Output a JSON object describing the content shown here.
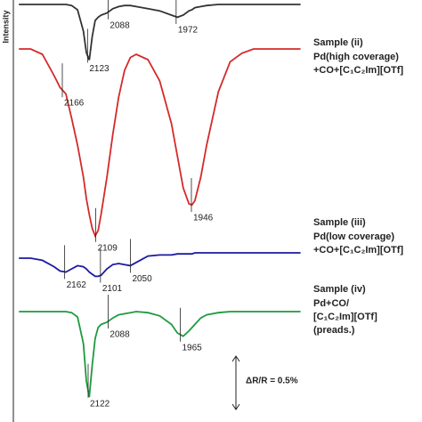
{
  "chart_data": {
    "type": "spectra",
    "y_label": "Intensity",
    "x": [
      2240,
      2220,
      2200,
      2180,
      2170,
      2160,
      2150,
      2140,
      2130,
      2125,
      2120,
      2115,
      2110,
      2105,
      2100,
      2090,
      2080,
      2070,
      2060,
      2050,
      2040,
      2020,
      2000,
      1980,
      1970,
      1960,
      1950,
      1945,
      1940,
      1930,
      1920,
      1900,
      1880,
      1860,
      1840,
      1800,
      1760
    ],
    "series": [
      {
        "color": "#333333",
        "peaks": [
          2123,
          2088,
          1972
        ],
        "values": [
          0,
          0,
          0,
          0,
          0,
          0,
          -0.01,
          -0.05,
          -0.25,
          -0.45,
          -0.52,
          -0.3,
          -0.15,
          -0.12,
          -0.1,
          -0.08,
          -0.04,
          -0.02,
          -0.01,
          -0.01,
          -0.02,
          -0.04,
          -0.06,
          -0.1,
          -0.12,
          -0.1,
          -0.06,
          -0.05,
          -0.03,
          -0.02,
          -0.01,
          0,
          0,
          0,
          0,
          0,
          0
        ]
      },
      {
        "name": "Sample (ii)",
        "description": [
          "Pd(high coverage)",
          "+CO+[C₁C₂Im][OTf]"
        ],
        "color": "#d42a2a",
        "peaks": [
          2166,
          2109,
          1946
        ],
        "values": [
          0,
          0,
          -0.05,
          -0.25,
          -0.36,
          -0.42,
          -0.65,
          -0.9,
          -1.2,
          -1.4,
          -1.55,
          -1.68,
          -1.75,
          -1.7,
          -1.55,
          -1.2,
          -0.8,
          -0.45,
          -0.2,
          -0.08,
          -0.05,
          -0.1,
          -0.3,
          -0.7,
          -1.0,
          -1.3,
          -1.45,
          -1.46,
          -1.42,
          -1.2,
          -0.9,
          -0.4,
          -0.12,
          -0.04,
          0,
          0,
          0
        ]
      },
      {
        "name": "Sample (iii)",
        "description": [
          "Pd(low coverage)",
          "+CO+[C₁C₂Im][OTf]"
        ],
        "color": "#1a1aa0",
        "peaks": [
          2162,
          2101,
          2050
        ],
        "values": [
          0,
          0,
          -0.02,
          -0.08,
          -0.12,
          -0.13,
          -0.1,
          -0.07,
          -0.08,
          -0.1,
          -0.13,
          -0.15,
          -0.17,
          -0.17,
          -0.16,
          -0.1,
          -0.06,
          -0.05,
          -0.06,
          -0.07,
          -0.04,
          0.02,
          0.03,
          0.03,
          0.04,
          0.04,
          0.04,
          0.04,
          0.05,
          0.05,
          0.05,
          0.05,
          0.05,
          0.05,
          0.05,
          0.05,
          0.05
        ]
      },
      {
        "name": "Sample (iv)",
        "description": [
          "Pd+CO/",
          "[C₁C₂Im][OTf]",
          "(preads.)"
        ],
        "color": "#1f9a3f",
        "peaks": [
          2122,
          2088,
          1965
        ],
        "values": [
          0,
          0,
          0,
          0,
          0,
          0,
          -0.01,
          -0.05,
          -0.3,
          -0.65,
          -0.8,
          -0.5,
          -0.25,
          -0.15,
          -0.12,
          -0.1,
          -0.06,
          -0.03,
          -0.02,
          -0.01,
          0,
          -0.01,
          -0.04,
          -0.12,
          -0.2,
          -0.23,
          -0.18,
          -0.15,
          -0.12,
          -0.06,
          -0.03,
          -0.01,
          0,
          0,
          0,
          0,
          0
        ]
      }
    ],
    "scale_bar": {
      "value": 0.5,
      "label": "ΔR/R = 0.5%"
    }
  }
}
